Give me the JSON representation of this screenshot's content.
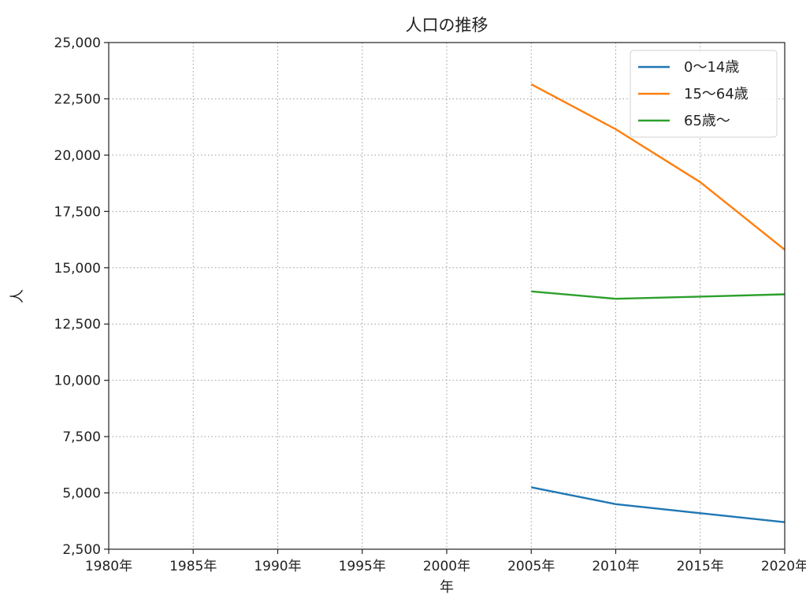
{
  "chart_data": {
    "type": "line",
    "title": "人口の推移",
    "xlabel": "年",
    "ylabel": "人",
    "x": [
      2005,
      2010,
      2015,
      2020
    ],
    "xlim": [
      1980,
      2020
    ],
    "ylim": [
      2500,
      25000
    ],
    "x_ticks": [
      1980,
      1985,
      1990,
      1995,
      2000,
      2005,
      2010,
      2015,
      2020
    ],
    "x_tick_labels": [
      "1980年",
      "1985年",
      "1990年",
      "1995年",
      "2000年",
      "2005年",
      "2010年",
      "2015年",
      "2020年"
    ],
    "y_ticks": [
      2500,
      5000,
      7500,
      10000,
      12500,
      15000,
      17500,
      20000,
      22500,
      25000
    ],
    "y_tick_labels": [
      "2,500",
      "5,000",
      "7,500",
      "10,000",
      "12,500",
      "15,000",
      "17,500",
      "20,000",
      "22,500",
      "25,000"
    ],
    "grid": true,
    "legend_position": "top-right",
    "series": [
      {
        "name": "0〜14歳",
        "color": "#1f77b4",
        "values": [
          5250,
          4500,
          4100,
          3700
        ]
      },
      {
        "name": "15〜64歳",
        "color": "#ff7f0e",
        "values": [
          23150,
          21150,
          18800,
          15800
        ]
      },
      {
        "name": "65歳〜",
        "color": "#2ca02c",
        "values": [
          13950,
          13620,
          13720,
          13820
        ]
      }
    ]
  }
}
